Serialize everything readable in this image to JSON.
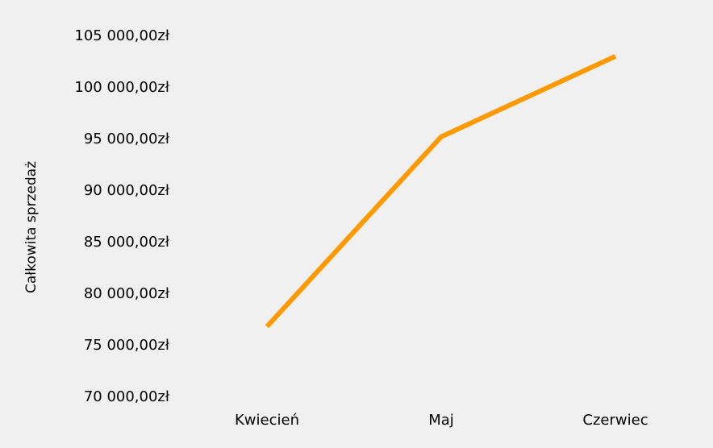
{
  "chart_data": {
    "type": "line",
    "title": "",
    "xlabel": "",
    "ylabel": "Całkowita sprzedaż",
    "categories": [
      "Kwiecień",
      "Maj",
      "Czerwiec"
    ],
    "series": [
      {
        "values": [
          76700,
          95100,
          102900
        ],
        "color": "#ff9900"
      }
    ],
    "ylim": [
      70000,
      105000
    ],
    "yticks": [
      70000,
      75000,
      80000,
      85000,
      90000,
      95000,
      100000,
      105000
    ],
    "ytick_labels": [
      "70 000,00zł",
      "75 000,00zł",
      "80 000,00zł",
      "85 000,00zł",
      "90 000,00zł",
      "95 000,00zł",
      "100 000,00zł",
      "105 000,00zł"
    ],
    "grid": false,
    "legend": "none",
    "background": "#f0f0f0"
  }
}
